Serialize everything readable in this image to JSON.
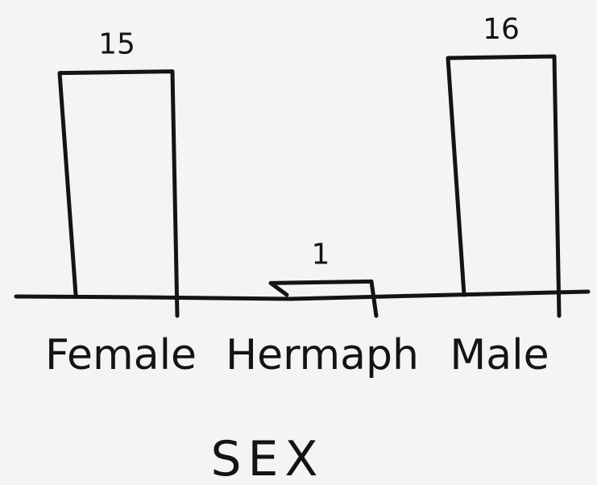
{
  "chart_data": {
    "type": "bar",
    "xlabel": "SEX",
    "ylabel": "",
    "categories": [
      "Female",
      "Hermaph",
      "Male"
    ],
    "values": [
      15,
      1,
      16
    ],
    "data_labels": [
      "15",
      "1",
      "16"
    ],
    "ylim": [
      0,
      16
    ],
    "grid": false,
    "legend": "none",
    "style": "hand-drawn outline bars",
    "ink_color": "#141414",
    "paper_color": "#f5f4f2"
  }
}
